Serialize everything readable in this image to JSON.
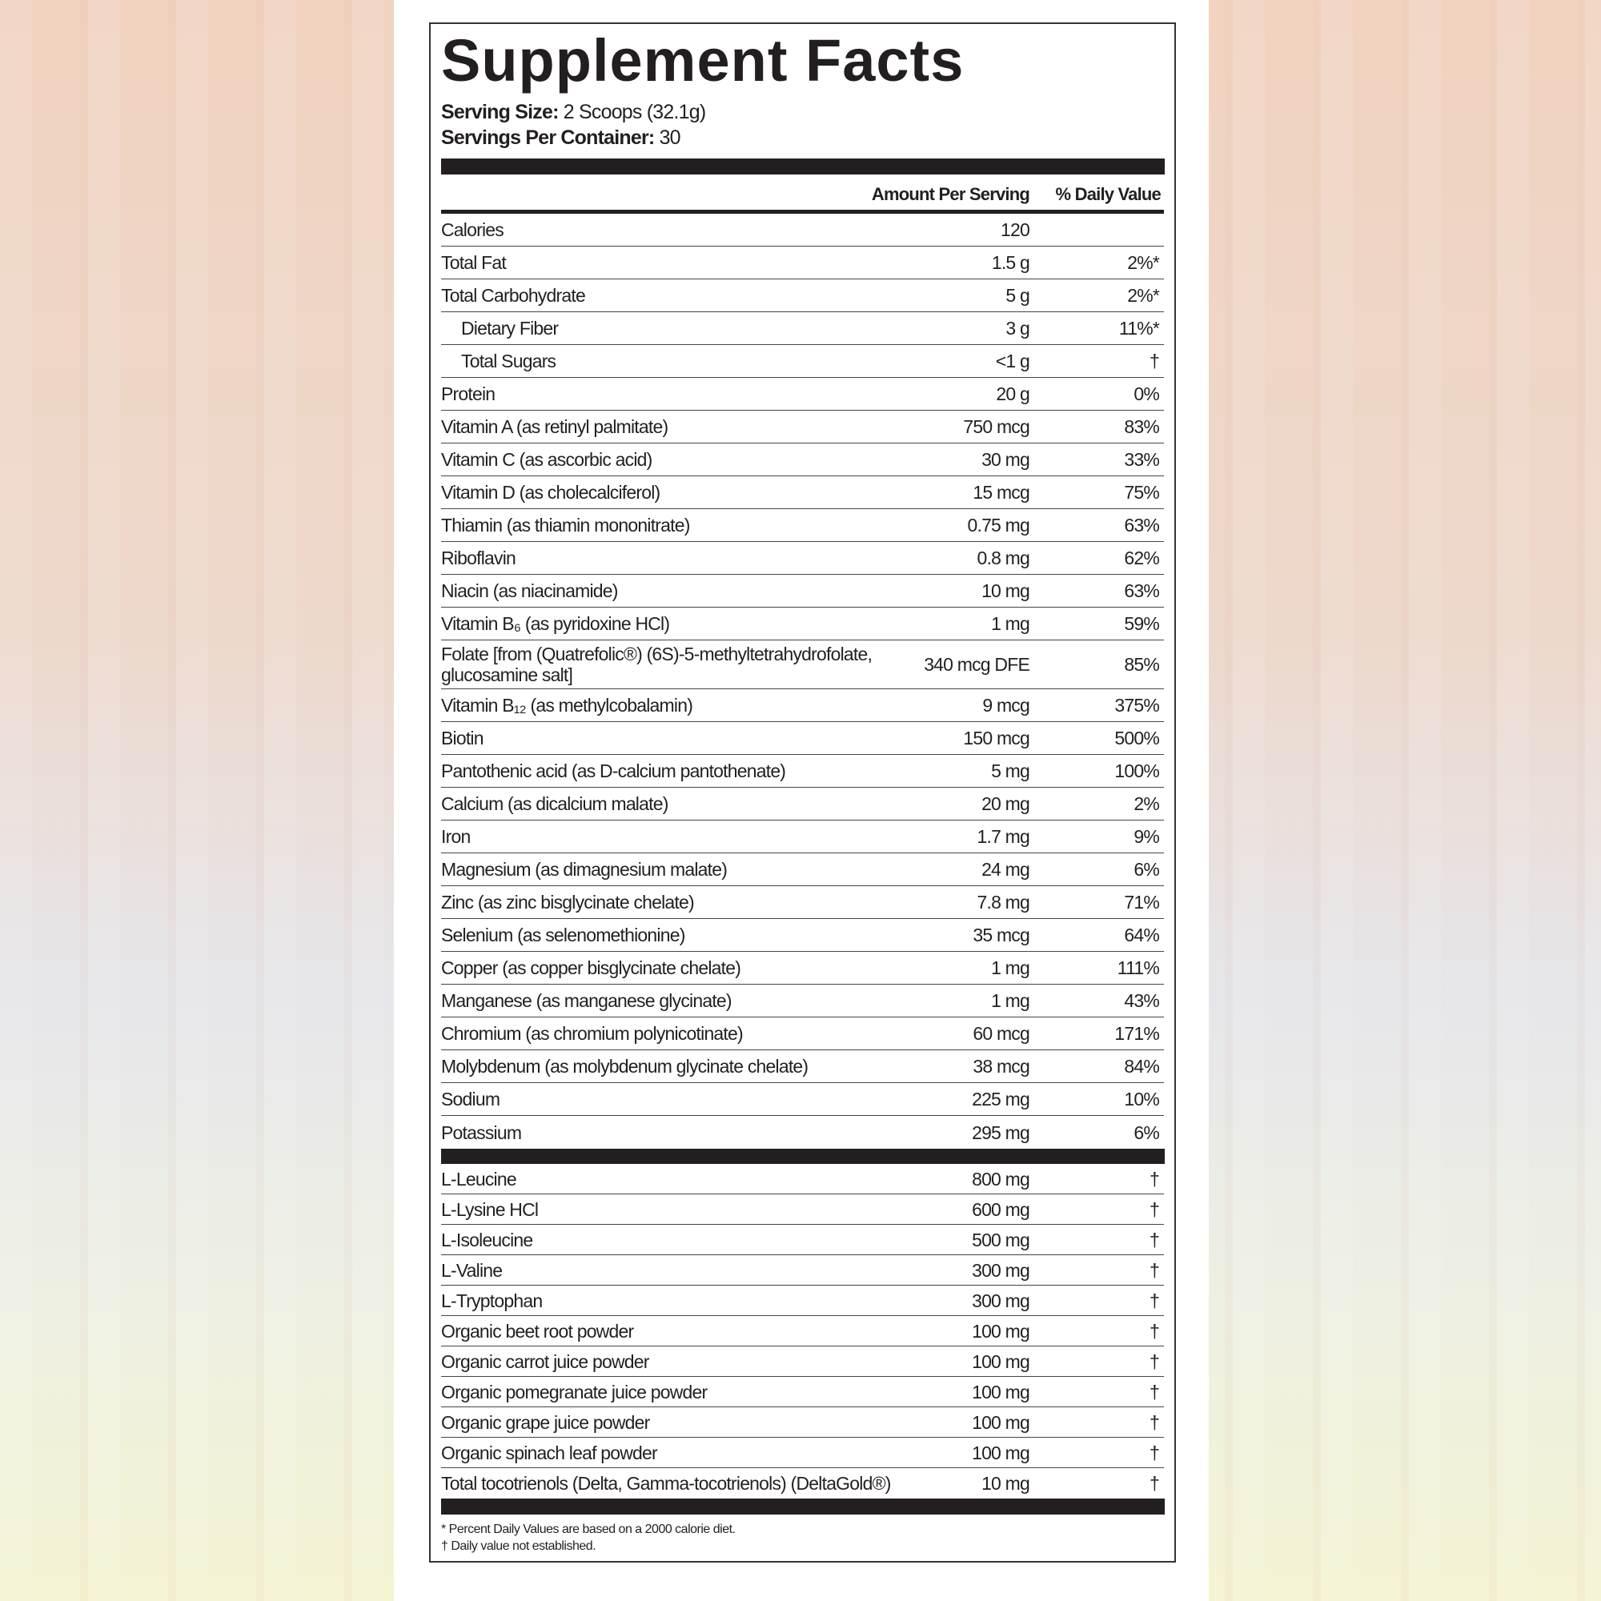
{
  "title": "Supplement Facts",
  "serving_size": {
    "label": "Serving Size:",
    "value": "2 Scoops (32.1g)"
  },
  "servings_per_container": {
    "label": "Servings Per Container:",
    "value": "30"
  },
  "headers": {
    "amount": "Amount Per Serving",
    "dv": "% Daily Value"
  },
  "nutrients": [
    {
      "name": "Calories",
      "amount": "120",
      "dv": ""
    },
    {
      "name": "Total Fat",
      "amount": "1.5 g",
      "dv": "2%*"
    },
    {
      "name": "Total Carbohydrate",
      "amount": "5 g",
      "dv": "2%*"
    },
    {
      "name": "Dietary Fiber",
      "amount": "3 g",
      "dv": "11%*",
      "indent": true
    },
    {
      "name": "Total Sugars",
      "amount": "<1 g",
      "dv": "†",
      "indent": true
    },
    {
      "name": "Protein",
      "amount": "20 g",
      "dv": "0%"
    },
    {
      "name": "Vitamin A (as retinyl palmitate)",
      "amount": "750 mcg",
      "dv": "83%"
    },
    {
      "name": "Vitamin C (as ascorbic acid)",
      "amount": "30 mg",
      "dv": "33%"
    },
    {
      "name": "Vitamin D (as cholecalciferol)",
      "amount": "15 mcg",
      "dv": "75%"
    },
    {
      "name": "Thiamin (as thiamin mononitrate)",
      "amount": "0.75 mg",
      "dv": "63%"
    },
    {
      "name": "Riboflavin",
      "amount": "0.8 mg",
      "dv": "62%"
    },
    {
      "name": "Niacin (as niacinamide)",
      "amount": "10 mg",
      "dv": "63%"
    },
    {
      "name": "Vitamin B₆ (as pyridoxine HCl)",
      "amount": "1 mg",
      "dv": "59%"
    },
    {
      "name": "Folate [from (Quatrefolic®)  (6S)-5-methyltetrahydrofolate, glucosamine salt]",
      "amount": "340 mcg DFE",
      "dv": "85%"
    },
    {
      "name": "Vitamin B₁₂ (as methylcobalamin)",
      "amount": "9 mcg",
      "dv": "375%"
    },
    {
      "name": "Biotin",
      "amount": "150 mcg",
      "dv": "500%"
    },
    {
      "name": "Pantothenic acid (as D-calcium pantothenate)",
      "amount": "5 mg",
      "dv": "100%"
    },
    {
      "name": "Calcium (as dicalcium malate)",
      "amount": "20 mg",
      "dv": "2%"
    },
    {
      "name": "Iron",
      "amount": "1.7 mg",
      "dv": "9%"
    },
    {
      "name": "Magnesium (as dimagnesium malate)",
      "amount": "24 mg",
      "dv": "6%"
    },
    {
      "name": "Zinc (as zinc bisglycinate chelate)",
      "amount": "7.8 mg",
      "dv": "71%"
    },
    {
      "name": "Selenium (as selenomethionine)",
      "amount": "35 mcg",
      "dv": "64%"
    },
    {
      "name": "Copper (as copper bisglycinate chelate)",
      "amount": "1 mg",
      "dv": "111%"
    },
    {
      "name": "Manganese (as manganese glycinate)",
      "amount": "1 mg",
      "dv": "43%"
    },
    {
      "name": "Chromium (as chromium polynicotinate)",
      "amount": "60 mcg",
      "dv": "171%"
    },
    {
      "name": "Molybdenum (as molybdenum glycinate chelate)",
      "amount": "38 mcg",
      "dv": "84%"
    },
    {
      "name": "Sodium",
      "amount": "225 mg",
      "dv": "10%"
    },
    {
      "name": "Potassium",
      "amount": "295 mg",
      "dv": "6%"
    }
  ],
  "other_ingredients": [
    {
      "name": "L-Leucine",
      "amount": "800 mg",
      "dv": "†"
    },
    {
      "name": "L-Lysine HCl",
      "amount": "600 mg",
      "dv": "†"
    },
    {
      "name": "L-Isoleucine",
      "amount": "500 mg",
      "dv": "†"
    },
    {
      "name": "L-Valine",
      "amount": "300 mg",
      "dv": "†"
    },
    {
      "name": "L-Tryptophan",
      "amount": "300 mg",
      "dv": "†"
    },
    {
      "name": "Organic beet root powder",
      "amount": "100 mg",
      "dv": "†"
    },
    {
      "name": "Organic carrot juice powder",
      "amount": "100 mg",
      "dv": "†"
    },
    {
      "name": "Organic pomegranate juice powder",
      "amount": "100 mg",
      "dv": "†"
    },
    {
      "name": "Organic grape juice powder",
      "amount": "100 mg",
      "dv": "†"
    },
    {
      "name": "Organic spinach leaf powder",
      "amount": "100 mg",
      "dv": "†"
    },
    {
      "name": "Total tocotrienols (Delta, Gamma-tocotrienols) (DeltaGold®)",
      "amount": "10 mg",
      "dv": "†"
    }
  ],
  "footnotes": [
    "* Percent Daily Values are based on a 2000 calorie diet.",
    "† Daily value not established."
  ]
}
